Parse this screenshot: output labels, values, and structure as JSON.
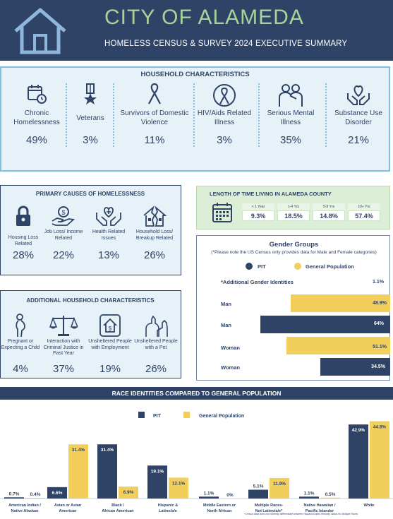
{
  "header": {
    "title": "CITY OF ALAMEDA",
    "subtitle": "HOMELESS CENSUS & SURVEY 2024 EXECUTIVE SUMMARY",
    "icon": "house-icon",
    "bg_color": "#2f4366",
    "title_color": "#a9d39c"
  },
  "household": {
    "title": "HOUSEHOLD CHARACTERISTICS",
    "items": [
      {
        "label": "Chronic Homelessness",
        "value": "49%",
        "icon": "calendar-clock-icon"
      },
      {
        "label": "Veterans",
        "value": "3%",
        "icon": "medal-icon"
      },
      {
        "label": "Survivors of Domestic Violence",
        "value": "11%",
        "icon": "ribbon-icon"
      },
      {
        "label": "HIV/Aids Related Illness",
        "value": "3%",
        "icon": "globe-ribbon-icon"
      },
      {
        "label": "Serious Mental Illness",
        "value": "35%",
        "icon": "people-support-icon"
      },
      {
        "label": "Substance Use Disorder",
        "value": "21%",
        "icon": "heart-hands-icon"
      }
    ]
  },
  "primary_causes": {
    "title": "PRIMARY CAUSES OF HOMELESSNESS",
    "items": [
      {
        "label": "Housing Loss Related",
        "value": "28%",
        "icon": "lock-icon"
      },
      {
        "label": "Job Loss/ Income Related",
        "value": "22%",
        "icon": "money-hand-icon"
      },
      {
        "label": "Health Related Issues",
        "value": "13%",
        "icon": "health-hands-icon"
      },
      {
        "label": "Household Loss/ Breakup Related",
        "value": "26%",
        "icon": "broken-house-icon"
      }
    ]
  },
  "additional": {
    "title": "ADDITIONAL HOUSEHOLD CHARACTERISTICS",
    "items": [
      {
        "label": "Pregnant or Expecting a Child",
        "value": "4%",
        "icon": "pregnant-icon"
      },
      {
        "label": "Interaction with Criminal Justice in Past Year",
        "value": "37%",
        "icon": "scales-icon"
      },
      {
        "label": "Unsheltered People with Employment",
        "value": "19%",
        "icon": "house-dollar-icon"
      },
      {
        "label": "Unsheltered People with a Pet",
        "value": "26%",
        "icon": "pets-icon"
      }
    ]
  },
  "length": {
    "title": "LENGTH OF TIME LIVING IN ALAMEDA COUNTY",
    "icon": "calendar-icon",
    "columns": [
      {
        "label": "< 1 Year",
        "value": "9.3%"
      },
      {
        "label": "1-4 Yrs",
        "value": "18.5%"
      },
      {
        "label": "5-9 Yrs",
        "value": "14.8%"
      },
      {
        "label": "10+ Yrs",
        "value": "57.4%"
      }
    ]
  },
  "gender": {
    "title": "Gender Groups",
    "note": "(*Please note the US Census only provides data for Male and Female categories)",
    "legend": {
      "pit": "PIT",
      "general": "General Population"
    },
    "rows": [
      {
        "label": "*Additional Gender Identities",
        "series": "PIT",
        "value": 1.1,
        "text": "1.1%"
      },
      {
        "label": "Man",
        "series": "General Population",
        "value": 48.9,
        "text": "48.9%"
      },
      {
        "label": "Man",
        "series": "PIT",
        "value": 64,
        "text": "64%"
      },
      {
        "label": "Woman",
        "series": "General Population",
        "value": 51.1,
        "text": "51.1%"
      },
      {
        "label": "Woman",
        "series": "PIT",
        "value": 34.5,
        "text": "34.5%"
      }
    ]
  },
  "race_banner": "RACE IDENTITIES COMPARED TO GENERAL POPULATION",
  "colors": {
    "pit": "#2f4366",
    "general": "#f2cf5b",
    "light_blue": "#e6f2f8",
    "green": "#dcefd6"
  },
  "chart_data": {
    "type": "bar",
    "categories": [
      "American Indian / Native Alaskan",
      "Asian or Asian American",
      "Black / African American",
      "Hispanic & Latino/a/e",
      "Middle Eastern or North African",
      "Multiple Races- Not Latino/a/e*",
      "Native Hawaiian / Pacific Islander",
      "White"
    ],
    "series": [
      {
        "name": "PIT",
        "values": [
          0.7,
          6.6,
          31.4,
          19.1,
          1.1,
          5.1,
          1.1,
          42.9
        ],
        "labels": [
          "0.7%",
          "6.6%",
          "31.4%",
          "19.1%",
          "1.1%",
          "5.1%",
          "1.1%",
          "42.9%"
        ]
      },
      {
        "name": "General Population",
        "values": [
          0.4,
          31.4,
          6.9,
          12.1,
          0,
          11.9,
          0.5,
          44.8
        ],
        "labels": [
          "0.4%",
          "31.4%",
          "6.9%",
          "12.1%",
          "0%",
          "11.9%",
          "0.5%",
          "44.8%"
        ]
      }
    ],
    "ylim": [
      0,
      45
    ]
  },
  "footnote": "*Census data does not currently differentiate between Hispanic/Latino ethnicity status for Multiple Races"
}
